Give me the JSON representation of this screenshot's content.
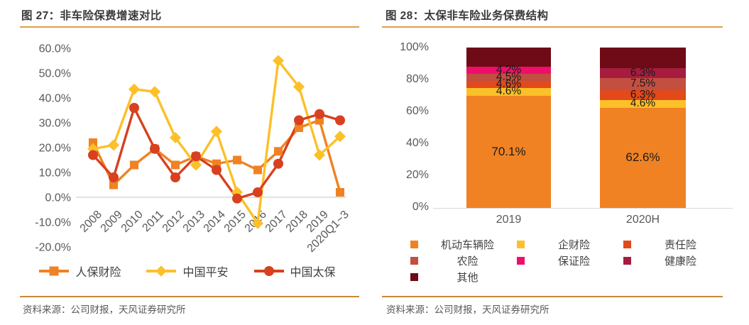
{
  "theme": {
    "background": "#FFFFFF",
    "title_color": "#3A3A3A",
    "title_rule_color": "#D9A14D",
    "source_rule_color": "#C9873B",
    "axis_label_color": "#595959",
    "axis_line_color": "#D9D9D9",
    "data_label_color": "#1A1A1A",
    "legend_text_color": "#404040"
  },
  "panels": {
    "left": {
      "title": "图 27：非车险保费增速对比",
      "source": "资料来源：公司财报，天风证券研究所"
    },
    "right": {
      "title": "图 28：太保非车险业务保费结构",
      "source": "资料来源：公司财报，天风证券研究所"
    }
  },
  "chart_data": [
    {
      "type": "line",
      "title": "非车险保费增速对比",
      "figure_label": "图 27",
      "unit": "percent",
      "categories": [
        "2008",
        "2009",
        "2010",
        "2011",
        "2012",
        "2013",
        "2014",
        "2015",
        "2016",
        "2017",
        "2018",
        "2019",
        "2020Q1~3"
      ],
      "series": [
        {
          "name": "人保财险",
          "color": "#F08223",
          "marker": "square",
          "values": [
            22,
            5,
            13,
            19.5,
            13,
            16.5,
            13.5,
            15,
            11,
            18.5,
            28,
            31,
            2
          ]
        },
        {
          "name": "中国平安",
          "color": "#FCC028",
          "marker": "diamond",
          "values": [
            19.5,
            21,
            43.5,
            42.5,
            24,
            13,
            26.5,
            2,
            -10.5,
            55,
            44.5,
            17,
            24.5
          ]
        },
        {
          "name": "中国太保",
          "color": "#D8401F",
          "marker": "circle",
          "values": [
            17,
            8,
            36,
            19.5,
            8,
            16.5,
            11,
            -0.5,
            2,
            13.5,
            31,
            33.5,
            31
          ]
        }
      ],
      "ylim": [
        -20,
        60
      ],
      "ytick_labels": [
        "60.0%",
        "50.0%",
        "40.0%",
        "30.0%",
        "20.0%",
        "10.0%",
        "0.0%",
        "-10.0%",
        "-20.0%"
      ],
      "grid": "zero-line-only",
      "legend_position": "bottom"
    },
    {
      "type": "bar",
      "subtype": "stacked-100",
      "title": "太保非车险业务保费结构",
      "figure_label": "图 28",
      "unit": "percent",
      "categories": [
        "2019",
        "2020H"
      ],
      "ylim": [
        0,
        100
      ],
      "ytick_labels": [
        "100%",
        "80%",
        "60%",
        "40%",
        "20%",
        "0%"
      ],
      "grid": "baseline-only",
      "legend_position": "bottom",
      "legend": [
        {
          "name": "机动车辆险",
          "color": "#F08223"
        },
        {
          "name": "企财险",
          "color": "#FCC028"
        },
        {
          "name": "责任险",
          "color": "#E2491B"
        },
        {
          "name": "农险",
          "color": "#C24F40"
        },
        {
          "name": "保证险",
          "color": "#EE0F6A"
        },
        {
          "name": "健康险",
          "color": "#A51C3F"
        },
        {
          "name": "其他",
          "color": "#6E0B16"
        }
      ],
      "bars": [
        {
          "category": "2019",
          "segments": [
            {
              "name": "机动车辆险",
              "value": 70.1,
              "label": "70.1%",
              "color": "#F08223"
            },
            {
              "name": "企财险",
              "value": 4.6,
              "label": "4.6%",
              "color": "#FCC028"
            },
            {
              "name": "责任险",
              "value": 4.6,
              "label": "4.6%",
              "color": "#E2491B"
            },
            {
              "name": "农险",
              "value": 4.5,
              "label": "4.5%",
              "color": "#C24F40"
            },
            {
              "name": "保证险",
              "value": 4.2,
              "label": "4.2%",
              "color": "#EE0F6A"
            },
            {
              "name": "其他",
              "value": 12.0,
              "label": "",
              "color": "#6E0B16"
            }
          ]
        },
        {
          "category": "2020H",
          "segments": [
            {
              "name": "机动车辆险",
              "value": 62.6,
              "label": "62.6%",
              "color": "#F08223"
            },
            {
              "name": "企财险",
              "value": 4.6,
              "label": "4.6%",
              "color": "#FCC028"
            },
            {
              "name": "责任险",
              "value": 6.3,
              "label": "6.3%",
              "color": "#E2491B"
            },
            {
              "name": "农险",
              "value": 7.5,
              "label": "7.5%",
              "color": "#C24F40"
            },
            {
              "name": "健康险",
              "value": 6.3,
              "label": "6.3%",
              "color": "#A51C3F"
            },
            {
              "name": "其他",
              "value": 12.7,
              "label": "",
              "color": "#6E0B16"
            }
          ]
        }
      ]
    }
  ]
}
